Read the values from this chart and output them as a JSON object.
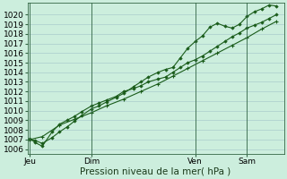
{
  "background_color": "#cceedd",
  "grid_color": "#aacccc",
  "line_color": "#1a5c1a",
  "ylabel": "Pression niveau de la mer( hPa )",
  "ylim": [
    1005.5,
    1021.2
  ],
  "yticks": [
    1006,
    1007,
    1008,
    1009,
    1010,
    1011,
    1012,
    1013,
    1014,
    1015,
    1016,
    1017,
    1018,
    1019,
    1020
  ],
  "xtick_labels": [
    "Jeu",
    "Dim",
    "Ven",
    "Sam"
  ],
  "xtick_positions": [
    0,
    0.25,
    0.67,
    0.88
  ],
  "vline_positions": [
    0.0,
    0.25,
    0.67,
    0.88
  ],
  "series1_x": [
    0.0,
    0.02,
    0.05,
    0.09,
    0.12,
    0.15,
    0.18,
    0.21,
    0.25,
    0.28,
    0.31,
    0.35,
    0.38,
    0.42,
    0.45,
    0.48,
    0.52,
    0.55,
    0.58,
    0.61,
    0.64,
    0.67,
    0.7,
    0.73,
    0.76,
    0.79,
    0.82,
    0.85,
    0.88,
    0.91,
    0.94,
    0.97,
    1.0
  ],
  "series1_y": [
    1007.0,
    1006.9,
    1006.6,
    1007.2,
    1007.8,
    1008.3,
    1008.9,
    1009.5,
    1010.2,
    1010.5,
    1010.9,
    1011.4,
    1011.8,
    1012.5,
    1013.0,
    1013.5,
    1014.0,
    1014.3,
    1014.5,
    1015.5,
    1016.5,
    1017.2,
    1017.8,
    1018.7,
    1019.1,
    1018.8,
    1018.6,
    1019.0,
    1019.8,
    1020.3,
    1020.6,
    1021.0,
    1020.9
  ],
  "series2_x": [
    0.0,
    0.02,
    0.05,
    0.09,
    0.12,
    0.15,
    0.18,
    0.21,
    0.25,
    0.28,
    0.31,
    0.35,
    0.38,
    0.42,
    0.45,
    0.48,
    0.52,
    0.55,
    0.58,
    0.61,
    0.64,
    0.67,
    0.7,
    0.73,
    0.76,
    0.79,
    0.82,
    0.85,
    0.88,
    0.91,
    0.94,
    0.97,
    1.0
  ],
  "series2_y": [
    1007.1,
    1006.7,
    1006.3,
    1007.8,
    1008.6,
    1009.0,
    1009.4,
    1009.9,
    1010.5,
    1010.8,
    1011.1,
    1011.5,
    1012.0,
    1012.3,
    1012.6,
    1013.0,
    1013.3,
    1013.5,
    1014.0,
    1014.5,
    1015.0,
    1015.3,
    1015.7,
    1016.2,
    1016.7,
    1017.2,
    1017.7,
    1018.1,
    1018.6,
    1018.9,
    1019.2,
    1019.6,
    1020.0
  ],
  "series3_x": [
    0.0,
    0.05,
    0.12,
    0.18,
    0.25,
    0.31,
    0.38,
    0.45,
    0.52,
    0.58,
    0.64,
    0.7,
    0.76,
    0.82,
    0.88,
    0.94,
    1.0
  ],
  "series3_y": [
    1007.0,
    1007.3,
    1008.5,
    1009.1,
    1009.8,
    1010.5,
    1011.2,
    1012.0,
    1012.8,
    1013.6,
    1014.4,
    1015.2,
    1016.0,
    1016.8,
    1017.6,
    1018.5,
    1019.3
  ],
  "fontsize_tick": 6.5,
  "fontsize_label": 7.5
}
